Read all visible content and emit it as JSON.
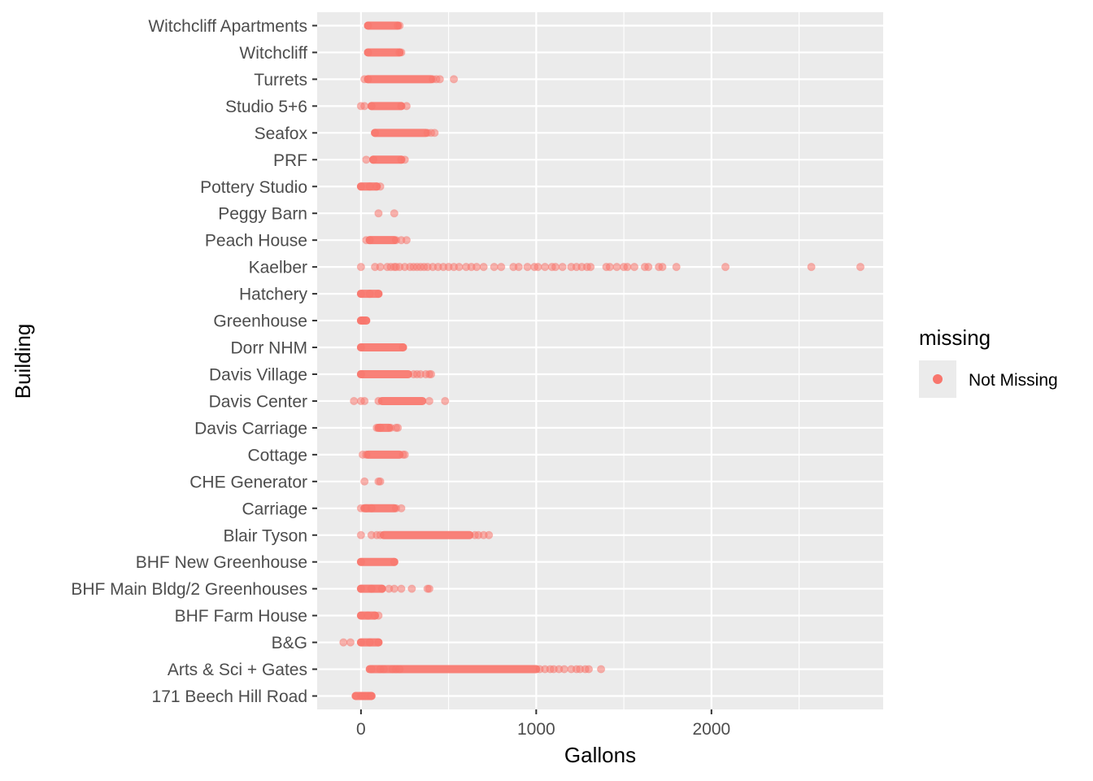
{
  "chart_data": {
    "type": "scatter",
    "title": "",
    "xlabel": "Gallons",
    "ylabel": "Building",
    "xlim": [
      -250,
      2980
    ],
    "x_ticks": [
      0,
      1000,
      2000
    ],
    "x_tick_labels": [
      "0",
      "1000",
      "2000"
    ],
    "grid": true,
    "legend": {
      "title": "missing",
      "placement": "right",
      "entries": [
        {
          "label": "Not Missing",
          "color": "#F8766D"
        }
      ]
    },
    "point_color": "#F8766D",
    "categories": [
      "171 Beech Hill Road",
      "Arts & Sci + Gates",
      "B&G",
      "BHF Farm House",
      "BHF Main Bldg/2 Greenhouses",
      "BHF New Greenhouse",
      "Blair Tyson",
      "Carriage",
      "CHE Generator",
      "Cottage",
      "Davis Carriage",
      "Davis Center",
      "Davis Village",
      "Dorr NHM",
      "Greenhouse",
      "Hatchery",
      "Kaelber",
      "Peach House",
      "Peggy Barn",
      "Pottery Studio",
      "PRF",
      "Seafox",
      "Studio 5+6",
      "Turrets",
      "Witchcliff",
      "Witchcliff Apartments"
    ],
    "series": [
      {
        "category": "171 Beech Hill Road",
        "range": [
          -30,
          60
        ],
        "x": [
          -30,
          0,
          10,
          25,
          40,
          55,
          60
        ]
      },
      {
        "category": "Arts & Sci + Gates",
        "range": [
          50,
          1000
        ],
        "x": [
          60,
          110,
          130,
          180,
          200,
          220,
          1020,
          1050,
          1080,
          1100,
          1130,
          1160,
          1200,
          1230,
          1250,
          1280,
          1300,
          1370
        ]
      },
      {
        "category": "B&G",
        "range": [
          0,
          100
        ],
        "x": [
          -100,
          -60,
          0,
          50,
          100
        ]
      },
      {
        "category": "BHF Farm House",
        "range": [
          0,
          80
        ],
        "x": [
          0,
          40,
          80,
          100
        ]
      },
      {
        "category": "BHF Main Bldg/2 Greenhouses",
        "range": [
          0,
          120
        ],
        "x": [
          0,
          60,
          120,
          160,
          190,
          230,
          290,
          380,
          390
        ]
      },
      {
        "category": "BHF New Greenhouse",
        "range": [
          0,
          190
        ],
        "x": [
          0,
          190
        ]
      },
      {
        "category": "Blair Tyson",
        "range": [
          130,
          620
        ],
        "x": [
          0,
          60,
          90,
          110,
          650,
          670,
          700,
          730
        ]
      },
      {
        "category": "Carriage",
        "range": [
          20,
          190
        ],
        "x": [
          0,
          30,
          60,
          200,
          230
        ]
      },
      {
        "category": "CHE Generator",
        "range": [
          null,
          null
        ],
        "x": [
          20,
          100,
          110
        ]
      },
      {
        "category": "Cottage",
        "range": [
          40,
          220
        ],
        "x": [
          10,
          30,
          240,
          250
        ]
      },
      {
        "category": "Davis Carriage",
        "range": [
          100,
          160
        ],
        "x": [
          90,
          110,
          170,
          200,
          210
        ]
      },
      {
        "category": "Davis Center",
        "range": [
          120,
          350
        ],
        "x": [
          -40,
          0,
          20,
          100,
          390,
          480
        ]
      },
      {
        "category": "Davis Village",
        "range": [
          0,
          270
        ],
        "x": [
          0,
          300,
          320,
          340,
          370,
          390,
          400
        ]
      },
      {
        "category": "Dorr NHM",
        "range": [
          0,
          240
        ],
        "x": [
          0,
          240
        ]
      },
      {
        "category": "Greenhouse",
        "range": [
          0,
          30
        ],
        "x": [
          0,
          10,
          30
        ]
      },
      {
        "category": "Hatchery",
        "range": [
          0,
          100
        ],
        "x": [
          0,
          50,
          100
        ]
      },
      {
        "category": "Kaelber",
        "range": [
          null,
          null
        ],
        "x": [
          0,
          80,
          110,
          150,
          170,
          190,
          200,
          220,
          250,
          280,
          300,
          320,
          340,
          360,
          380,
          410,
          440,
          470,
          500,
          530,
          560,
          600,
          630,
          660,
          700,
          760,
          800,
          870,
          900,
          950,
          990,
          1010,
          1050,
          1090,
          1110,
          1150,
          1200,
          1230,
          1260,
          1290,
          1310,
          1400,
          1420,
          1460,
          1500,
          1520,
          1560,
          1620,
          1640,
          1700,
          1720,
          1800,
          2080,
          2570,
          2850
        ]
      },
      {
        "category": "Peach House",
        "range": [
          50,
          190
        ],
        "x": [
          30,
          50,
          200,
          230,
          260
        ]
      },
      {
        "category": "Peggy Barn",
        "range": [
          null,
          null
        ],
        "x": [
          100,
          190
        ]
      },
      {
        "category": "Pottery Studio",
        "range": [
          0,
          90
        ],
        "x": [
          0,
          50,
          90,
          110
        ]
      },
      {
        "category": "PRF",
        "range": [
          70,
          230
        ],
        "x": [
          30,
          70,
          230,
          250
        ]
      },
      {
        "category": "Seafox",
        "range": [
          80,
          370
        ],
        "x": [
          80,
          380,
          400,
          420
        ]
      },
      {
        "category": "Studio 5+6",
        "range": [
          60,
          230
        ],
        "x": [
          0,
          20,
          60,
          230,
          260
        ]
      },
      {
        "category": "Turrets",
        "range": [
          40,
          400
        ],
        "x": [
          20,
          40,
          410,
          430,
          450,
          530
        ]
      },
      {
        "category": "Witchcliff",
        "range": [
          40,
          220
        ],
        "x": [
          40,
          220,
          230
        ]
      },
      {
        "category": "Witchcliff Apartments",
        "range": [
          40,
          210
        ],
        "x": [
          40,
          210,
          220
        ]
      }
    ]
  }
}
